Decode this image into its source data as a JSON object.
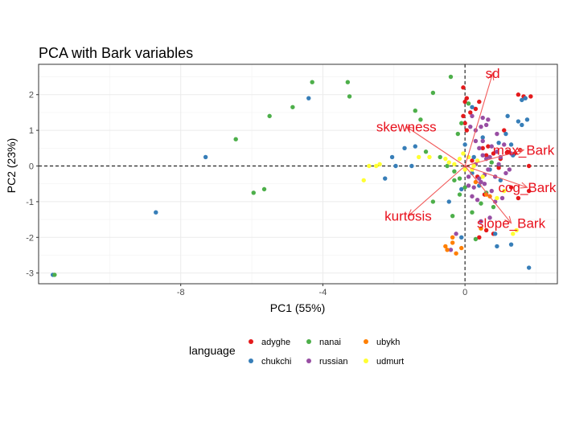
{
  "chart_data": {
    "type": "scatter",
    "title": "PCA with Bark variables",
    "xlabel": "PC1 (55%)",
    "ylabel": "PC2 (23%)",
    "xlim": [
      -12.0,
      2.6
    ],
    "ylim": [
      -3.3,
      2.85
    ],
    "x_ticks": [
      -8,
      -4,
      0
    ],
    "x_tick_labels": [
      "-8",
      "-4",
      "0"
    ],
    "y_ticks": [
      2,
      1,
      0,
      -1,
      -2,
      -3
    ],
    "y_tick_labels": [
      "2",
      "1",
      "0",
      "-1",
      "-2",
      "-3"
    ],
    "reference_lines": {
      "x": 0,
      "y": 0,
      "style": "dashed"
    },
    "grid": true,
    "legend": {
      "title": "language",
      "placement": "bottom",
      "entries": [
        {
          "name": "adyghe",
          "color": "#e41a1c"
        },
        {
          "name": "chukchi",
          "color": "#377eb8"
        },
        {
          "name": "nanai",
          "color": "#4daf4a"
        },
        {
          "name": "russian",
          "color": "#984ea3"
        },
        {
          "name": "ubykh",
          "color": "#ff7f00"
        },
        {
          "name": "udmurt",
          "color": "#ffff33"
        }
      ]
    },
    "series": [
      {
        "name": "adyghe",
        "color": "#e41a1c",
        "points": [
          [
            -0.05,
            2.2
          ],
          [
            0.05,
            1.9
          ],
          [
            0.0,
            1.8
          ],
          [
            0.15,
            1.5
          ],
          [
            0.3,
            1.6
          ],
          [
            0.4,
            1.8
          ],
          [
            -0.05,
            1.4
          ],
          [
            0.05,
            1.0
          ],
          [
            0.5,
            0.5
          ],
          [
            0.6,
            0.3
          ],
          [
            0.8,
            0.35
          ],
          [
            1.0,
            0.2
          ],
          [
            1.2,
            0.4
          ],
          [
            1.4,
            0.35
          ],
          [
            1.55,
            0.45
          ],
          [
            0.95,
            -0.05
          ],
          [
            1.3,
            -0.6
          ],
          [
            1.5,
            -0.9
          ],
          [
            1.8,
            -0.7
          ],
          [
            0.55,
            -0.8
          ],
          [
            0.35,
            -0.3
          ],
          [
            1.5,
            2.0
          ],
          [
            1.65,
            1.95
          ],
          [
            1.85,
            1.95
          ],
          [
            0.4,
            -2.0
          ],
          [
            0.6,
            -1.8
          ],
          [
            0.8,
            -1.9
          ],
          [
            0.2,
            0.15
          ],
          [
            0.65,
            0.55
          ],
          [
            1.1,
            1.0
          ],
          [
            0.0,
            1.2
          ],
          [
            1.8,
            0.0
          ]
        ]
      },
      {
        "name": "chukchi",
        "color": "#377eb8",
        "points": [
          [
            -11.6,
            -3.05
          ],
          [
            -8.7,
            -1.3
          ],
          [
            -7.3,
            0.25
          ],
          [
            -4.4,
            1.9
          ],
          [
            -2.05,
            0.25
          ],
          [
            -1.95,
            0.0
          ],
          [
            -1.7,
            0.5
          ],
          [
            -1.5,
            0.0
          ],
          [
            -1.4,
            0.55
          ],
          [
            -2.25,
            -0.35
          ],
          [
            1.2,
            1.4
          ],
          [
            1.15,
            0.9
          ],
          [
            1.3,
            0.6
          ],
          [
            0.95,
            0.65
          ],
          [
            1.5,
            1.25
          ],
          [
            1.6,
            1.15
          ],
          [
            1.75,
            1.3
          ],
          [
            1.7,
            1.9
          ],
          [
            1.6,
            1.85
          ],
          [
            1.35,
            0.3
          ],
          [
            0.25,
            0.25
          ],
          [
            0.7,
            -0.1
          ],
          [
            1.0,
            -0.4
          ],
          [
            0.4,
            -0.55
          ],
          [
            -0.1,
            -0.65
          ],
          [
            0.2,
            -0.2
          ],
          [
            0.5,
            0.8
          ],
          [
            0.85,
            -1.9
          ],
          [
            0.9,
            -2.25
          ],
          [
            1.3,
            -2.2
          ],
          [
            1.8,
            -2.85
          ],
          [
            -0.1,
            -2.0
          ],
          [
            -0.45,
            -1.0
          ],
          [
            0.0,
            0.6
          ],
          [
            0.2,
            1.65
          ]
        ]
      },
      {
        "name": "nanai",
        "color": "#4daf4a",
        "points": [
          [
            -11.55,
            -3.05
          ],
          [
            -6.45,
            0.75
          ],
          [
            -5.95,
            -0.75
          ],
          [
            -5.65,
            -0.65
          ],
          [
            -5.5,
            1.4
          ],
          [
            -4.85,
            1.65
          ],
          [
            -4.3,
            2.35
          ],
          [
            -3.3,
            2.35
          ],
          [
            -3.25,
            1.95
          ],
          [
            -1.4,
            1.55
          ],
          [
            -0.9,
            2.05
          ],
          [
            -1.1,
            0.4
          ],
          [
            -0.7,
            0.25
          ],
          [
            -0.2,
            0.9
          ],
          [
            -0.4,
            2.5
          ],
          [
            -0.1,
            1.2
          ],
          [
            -0.15,
            -0.35
          ],
          [
            -0.3,
            -0.4
          ],
          [
            -0.15,
            -0.8
          ],
          [
            0.0,
            -0.6
          ],
          [
            0.45,
            -1.05
          ],
          [
            0.6,
            -0.75
          ],
          [
            0.8,
            -1.15
          ],
          [
            0.2,
            -1.3
          ],
          [
            -0.35,
            -1.4
          ],
          [
            0.3,
            -2.05
          ],
          [
            -0.9,
            -1.0
          ],
          [
            -0.5,
            0.0
          ],
          [
            0.1,
            1.75
          ],
          [
            -1.25,
            1.3
          ],
          [
            0.75,
            0.1
          ],
          [
            -0.3,
            -0.15
          ]
        ]
      },
      {
        "name": "russian",
        "color": "#984ea3",
        "points": [
          [
            0.3,
            1.0
          ],
          [
            0.45,
            1.1
          ],
          [
            0.6,
            1.15
          ],
          [
            0.5,
            0.3
          ],
          [
            0.7,
            0.25
          ],
          [
            0.9,
            0.4
          ],
          [
            1.1,
            0.6
          ],
          [
            0.95,
            0.05
          ],
          [
            0.65,
            -0.1
          ],
          [
            0.85,
            -0.3
          ],
          [
            0.4,
            0.5
          ],
          [
            0.3,
            0.05
          ],
          [
            0.55,
            -0.5
          ],
          [
            0.75,
            -0.7
          ],
          [
            1.05,
            -0.9
          ],
          [
            0.35,
            -0.95
          ],
          [
            0.2,
            -0.85
          ],
          [
            1.15,
            -0.2
          ],
          [
            1.25,
            -0.1
          ],
          [
            0.45,
            -1.55
          ],
          [
            0.7,
            -1.45
          ],
          [
            -0.25,
            -1.9
          ],
          [
            -0.4,
            -2.35
          ],
          [
            0.1,
            -0.55
          ],
          [
            0.3,
            0.7
          ],
          [
            0.5,
            1.35
          ],
          [
            0.2,
            1.4
          ],
          [
            0.75,
            0.55
          ],
          [
            0.25,
            -0.6
          ],
          [
            1.0,
            0.25
          ],
          [
            0.55,
            -0.25
          ],
          [
            0.85,
            -1.0
          ],
          [
            0.6,
            0.2
          ],
          [
            0.4,
            -0.35
          ],
          [
            0.45,
            -0.45
          ],
          [
            0.65,
            1.3
          ],
          [
            0.15,
            1.1
          ],
          [
            1.3,
            0.35
          ],
          [
            0.9,
            0.9
          ],
          [
            0.1,
            -0.3
          ],
          [
            0.5,
            0.7
          ]
        ]
      },
      {
        "name": "ubykh",
        "color": "#ff7f00",
        "points": [
          [
            -0.55,
            -2.25
          ],
          [
            -0.5,
            -2.35
          ],
          [
            -0.35,
            -2.15
          ],
          [
            -0.1,
            -2.3
          ],
          [
            -0.25,
            -2.45
          ],
          [
            0.45,
            -1.75
          ],
          [
            0.6,
            -0.8
          ],
          [
            0.3,
            -0.45
          ],
          [
            0.7,
            -0.85
          ],
          [
            -0.35,
            -2.0
          ]
        ]
      },
      {
        "name": "udmurt",
        "color": "#ffff33",
        "points": [
          [
            -2.85,
            -0.4
          ],
          [
            -2.5,
            0.0
          ],
          [
            -2.4,
            0.05
          ],
          [
            -2.7,
            0.0
          ],
          [
            -1.3,
            0.25
          ],
          [
            -1.0,
            0.25
          ],
          [
            -0.55,
            0.2
          ],
          [
            -0.45,
            0.1
          ],
          [
            -0.3,
            0.05
          ],
          [
            0.1,
            0.25
          ],
          [
            0.25,
            0.0
          ],
          [
            0.35,
            0.15
          ],
          [
            -0.05,
            0.35
          ],
          [
            1.35,
            -1.9
          ],
          [
            1.45,
            -1.8
          ],
          [
            0.5,
            -0.3
          ],
          [
            1.1,
            -0.7
          ],
          [
            0.9,
            -0.9
          ],
          [
            0.2,
            -0.1
          ],
          [
            -0.15,
            0.2
          ],
          [
            0.0,
            -0.1
          ]
        ]
      }
    ],
    "loadings": [
      {
        "label": "sd",
        "x": 0.78,
        "y": 2.6,
        "color": "#e8101c"
      },
      {
        "label": "skewness",
        "x": -1.65,
        "y": 1.1,
        "color": "#e8101c"
      },
      {
        "label": "max_Bark",
        "x": 1.65,
        "y": 0.45,
        "color": "#e8101c"
      },
      {
        "label": "cog_Bark",
        "x": 1.75,
        "y": -0.6,
        "color": "#e8101c"
      },
      {
        "label": "kurtosis",
        "x": -1.6,
        "y": -1.4,
        "color": "#e8101c"
      },
      {
        "label": "slope_Bark",
        "x": 1.3,
        "y": -1.6,
        "color": "#e8101c"
      }
    ]
  }
}
